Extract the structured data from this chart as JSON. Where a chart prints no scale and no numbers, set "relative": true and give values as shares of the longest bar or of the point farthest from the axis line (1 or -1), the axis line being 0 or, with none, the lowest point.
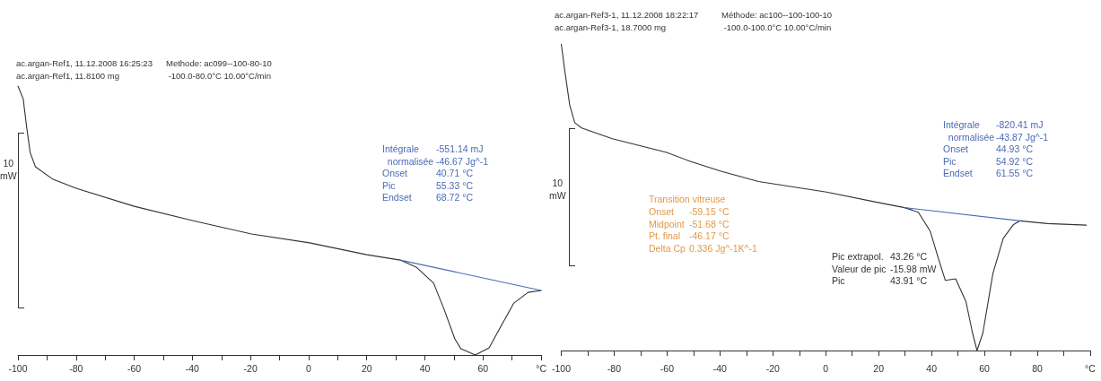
{
  "chart_data": [
    {
      "type": "line",
      "title": "ac.argan-Ref1, 11.12.2008 16:25:23\nac.argan-Ref1, 11.8100 mg",
      "subtitle": "Methode: ac099--100-80-10\n -100.0-80.0°C 10.00°C/min",
      "ylabel": "10\nmW",
      "relative": true,
      "marker": "none",
      "line_style": "solid",
      "xlim": [
        -100,
        80
      ],
      "xticks": [
        -100,
        {
          "value": -90,
          "label": null
        },
        -80,
        {
          "value": -70,
          "label": null
        },
        -60,
        {
          "value": -50,
          "label": null
        },
        -40,
        {
          "value": -30,
          "label": null
        },
        -20,
        {
          "value": -10,
          "label": null
        },
        0,
        {
          "value": 10,
          "label": null
        },
        20,
        {
          "value": 30,
          "label": null
        },
        40,
        {
          "value": 50,
          "label": null
        },
        60,
        {
          "value": 70,
          "label": null
        },
        {
          "value": 80,
          "label": "°C"
        }
      ],
      "annotations": [
        "Intégrale\n  normalisée\nOnset\nPic\nEndset",
        "-551.14 mJ\n-46.67 Jg^-1\n40.71 °C\n55.33 °C\n68.72 °C"
      ],
      "series": [
        {
          "color": "#333333",
          "x": [
            -100,
            -98.2,
            -97,
            -95.8,
            -94,
            -87.9,
            -80,
            -60,
            -40,
            -19.7,
            0.3,
            20,
            31.5,
            37,
            43,
            46.7,
            50.3,
            52.4,
            57.3,
            62.1,
            65.8,
            70.6,
            75.5,
            80
          ],
          "values": [
            1,
            0.953,
            0.847,
            0.753,
            0.7,
            0.653,
            0.62,
            0.553,
            0.5,
            0.45,
            0.417,
            0.373,
            0.353,
            0.327,
            0.267,
            0.167,
            0.06,
            0.023,
            0,
            0.027,
            0.1,
            0.193,
            0.233,
            0.24
          ]
        },
        {
          "color": "#4a6ab5",
          "x": [
            31.5,
            80
          ],
          "values": [
            0.353,
            0.24
          ]
        }
      ]
    },
    {
      "type": "line",
      "title": "ac.argan-Ref3-1, 11.12.2008 18:22:17\nac.argan-Ref3-1, 18.7000 mg",
      "subtitle": "Méthode: ac100--100-100-10\n -100.0-100.0°C 10.00°C/min",
      "ylabel": "10\nmW",
      "relative": true,
      "marker": "none",
      "line_style": "solid",
      "xlim": [
        -100,
        100
      ],
      "xticks": [
        -100,
        {
          "value": -90,
          "label": null
        },
        -80,
        {
          "value": -70,
          "label": null
        },
        -60,
        {
          "value": -50,
          "label": null
        },
        -40,
        {
          "value": -30,
          "label": null
        },
        -20,
        {
          "value": -10,
          "label": null
        },
        0,
        {
          "value": 10,
          "label": null
        },
        20,
        {
          "value": 30,
          "label": null
        },
        40,
        {
          "value": 50,
          "label": null
        },
        60,
        {
          "value": 70,
          "label": null
        },
        80,
        {
          "value": 90,
          "label": null
        },
        {
          "value": 100,
          "label": "°C"
        }
      ],
      "annotations": [
        "Intégrale\n  normalisée\nOnset\nPic\nEndset",
        "-820.41 mJ\n-43.87 Jg^-1\n44.93 °C\n54.92 °C\n61.55 °C",
        "Transition vitreuse",
        "Onset\nMidpoint\nPt. final\nDelta Cp",
        "-59.15 °C\n-51.68 °C\n-46.17 °C\n0.336 Jg^-1K^-1",
        "Pic extrapol.\nValeur de pic\nPic",
        "43.26 °C\n-15.98 mW\n43.91 °C"
      ],
      "series": [
        {
          "color": "#333333",
          "x": [
            -100,
            -98.7,
            -96.8,
            -94.9,
            -92.3,
            -80.7,
            -60.2,
            -51.2,
            -39.6,
            -25.4,
            0.3,
            20.2,
            29.8,
            35,
            39.5,
            42.7,
            45.2,
            49.1,
            53,
            55.5,
            57.2,
            59.4,
            63.2,
            67.1,
            71,
            73.5,
            83.8,
            98.5
          ],
          "values": [
            1,
            0.914,
            0.8,
            0.743,
            0.726,
            0.691,
            0.646,
            0.617,
            0.585,
            0.551,
            0.517,
            0.482,
            0.466,
            0.451,
            0.389,
            0.297,
            0.229,
            0.234,
            0.16,
            0.057,
            0,
            0.057,
            0.251,
            0.366,
            0.411,
            0.423,
            0.414,
            0.409
          ]
        },
        {
          "color": "#4a6ab5",
          "x": [
            29.8,
            73.5
          ],
          "values": [
            0.466,
            0.423
          ]
        }
      ]
    }
  ]
}
